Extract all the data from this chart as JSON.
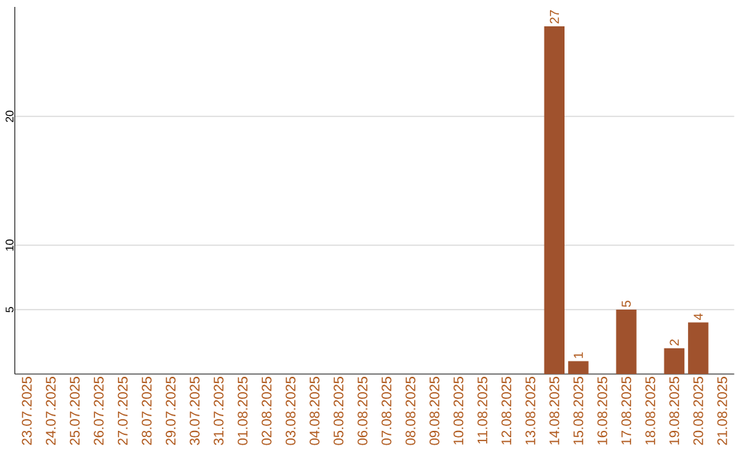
{
  "chart_data": {
    "type": "bar",
    "categories": [
      "23.07.2025",
      "24.07.2025",
      "25.07.2025",
      "26.07.2025",
      "27.07.2025",
      "28.07.2025",
      "29.07.2025",
      "30.07.2025",
      "31.07.2025",
      "01.08.2025",
      "02.08.2025",
      "03.08.2025",
      "04.08.2025",
      "05.08.2025",
      "06.08.2025",
      "07.08.2025",
      "08.08.2025",
      "09.08.2025",
      "10.08.2025",
      "11.08.2025",
      "12.08.2025",
      "13.08.2025",
      "14.08.2025",
      "15.08.2025",
      "16.08.2025",
      "17.08.2025",
      "18.08.2025",
      "19.08.2025",
      "20.08.2025",
      "21.08.2025"
    ],
    "values": [
      0,
      0,
      0,
      0,
      0,
      0,
      0,
      0,
      0,
      0,
      0,
      0,
      0,
      0,
      0,
      0,
      0,
      0,
      0,
      0,
      0,
      0,
      27,
      1,
      0,
      5,
      0,
      2,
      4,
      0
    ],
    "value_labels": [
      null,
      null,
      null,
      null,
      null,
      null,
      null,
      null,
      null,
      null,
      null,
      null,
      null,
      null,
      null,
      null,
      null,
      null,
      null,
      null,
      null,
      null,
      "27",
      "1",
      null,
      "5",
      null,
      "2",
      "4",
      null
    ],
    "color": "#a0522d",
    "ylim": [
      0,
      28.5
    ],
    "yticks": [
      5,
      10,
      20
    ],
    "grid": "y"
  }
}
